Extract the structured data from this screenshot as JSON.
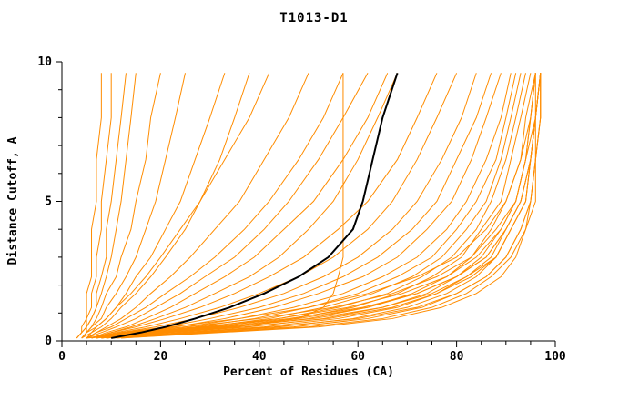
{
  "title": "T1013-D1",
  "colors": {
    "orange": "#ff8c00",
    "black": "#000000",
    "axis": "#000000",
    "background": "#ffffff"
  },
  "chart_data": {
    "type": "line",
    "title": "T1013-D1",
    "xlabel": "Percent of Residues (CA)",
    "ylabel": "Distance Cutoff, A",
    "xlim": [
      0,
      100
    ],
    "ylim": [
      0,
      10
    ],
    "x_ticks_major": [
      0,
      20,
      40,
      60,
      80,
      100
    ],
    "x_minor_step": 5,
    "y_ticks_major": [
      0,
      5,
      10
    ],
    "y_minor_step": 1,
    "grid": false,
    "legend": "none",
    "cutoffs": [
      0.1,
      0.3,
      0.5,
      0.8,
      1.2,
      1.7,
      2.3,
      3.0,
      4.0,
      5.0,
      6.5,
      8.0,
      9.6
    ],
    "highlight_series": {
      "name": "selected-model",
      "color": "#000000",
      "x": [
        10,
        16,
        21,
        27,
        34,
        41,
        48,
        54,
        59,
        61,
        63,
        65,
        68
      ]
    },
    "series": [
      {
        "x": [
          3,
          4,
          4,
          5,
          5,
          5,
          6,
          6,
          6,
          7,
          7,
          8,
          8
        ]
      },
      {
        "x": [
          3,
          4,
          5,
          5,
          6,
          6,
          7,
          7,
          8,
          8,
          9,
          10,
          10
        ]
      },
      {
        "x": [
          4,
          5,
          5,
          6,
          7,
          7,
          8,
          9,
          9,
          10,
          11,
          12,
          13
        ]
      },
      {
        "x": [
          3,
          4,
          5,
          6,
          7,
          8,
          9,
          10,
          11,
          12,
          13,
          14,
          15
        ]
      },
      {
        "x": [
          4,
          5,
          6,
          7,
          8,
          9,
          11,
          12,
          14,
          15,
          17,
          18,
          20
        ]
      },
      {
        "x": [
          4,
          5,
          6,
          8,
          9,
          11,
          13,
          15,
          17,
          19,
          21,
          23,
          25
        ]
      },
      {
        "x": [
          4,
          6,
          7,
          9,
          11,
          13,
          15,
          18,
          21,
          24,
          27,
          30,
          33
        ]
      },
      {
        "x": [
          5,
          6,
          8,
          10,
          12,
          15,
          18,
          21,
          25,
          28,
          32,
          35,
          38
        ]
      },
      {
        "x": [
          4,
          5,
          7,
          9,
          11,
          14,
          17,
          20,
          24,
          28,
          33,
          38,
          42
        ]
      },
      {
        "x": [
          5,
          7,
          9,
          12,
          15,
          18,
          22,
          26,
          31,
          36,
          41,
          46,
          50
        ]
      },
      {
        "x": [
          5,
          7,
          10,
          13,
          17,
          21,
          26,
          31,
          37,
          42,
          48,
          53,
          57
        ]
      },
      {
        "x": [
          5,
          8,
          11,
          15,
          19,
          24,
          29,
          35,
          41,
          46,
          52,
          57,
          62
        ]
      },
      {
        "x": [
          6,
          9,
          13,
          17,
          22,
          27,
          33,
          39,
          45,
          51,
          57,
          62,
          66
        ]
      },
      {
        "x": [
          5,
          18,
          35,
          48,
          53,
          55,
          56,
          57,
          57,
          57,
          57,
          57,
          57
        ]
      },
      {
        "x": [
          6,
          10,
          14,
          19,
          25,
          31,
          38,
          44,
          50,
          55,
          60,
          64,
          68
        ]
      },
      {
        "x": [
          6,
          10,
          15,
          21,
          28,
          35,
          42,
          49,
          56,
          62,
          68,
          72,
          76
        ]
      },
      {
        "x": [
          6,
          11,
          17,
          24,
          32,
          40,
          48,
          55,
          62,
          67,
          72,
          76,
          80
        ]
      },
      {
        "x": [
          7,
          12,
          19,
          27,
          36,
          45,
          53,
          60,
          67,
          72,
          77,
          81,
          84
        ]
      },
      {
        "x": [
          7,
          13,
          21,
          30,
          40,
          49,
          57,
          64,
          71,
          76,
          80,
          84,
          87
        ]
      },
      {
        "x": [
          7,
          14,
          23,
          33,
          43,
          52,
          61,
          68,
          74,
          79,
          83,
          86,
          89
        ]
      },
      {
        "x": [
          8,
          15,
          25,
          36,
          47,
          57,
          65,
          72,
          78,
          82,
          86,
          89,
          91
        ]
      },
      {
        "x": [
          8,
          16,
          27,
          39,
          50,
          60,
          68,
          75,
          80,
          84,
          88,
          90,
          92
        ]
      },
      {
        "x": [
          8,
          17,
          29,
          42,
          53,
          63,
          71,
          77,
          82,
          86,
          89,
          91,
          93
        ]
      },
      {
        "x": [
          9,
          18,
          31,
          44,
          56,
          66,
          73,
          79,
          84,
          87,
          90,
          92,
          94
        ]
      },
      {
        "x": [
          9,
          19,
          33,
          47,
          59,
          68,
          75,
          81,
          85,
          89,
          91,
          93,
          95
        ]
      },
      {
        "x": [
          9,
          20,
          35,
          50,
          62,
          71,
          78,
          83,
          87,
          90,
          93,
          94,
          96
        ]
      },
      {
        "x": [
          10,
          22,
          38,
          53,
          65,
          74,
          80,
          85,
          89,
          92,
          94,
          95,
          96
        ]
      },
      {
        "x": [
          10,
          24,
          41,
          56,
          68,
          76,
          82,
          87,
          90,
          93,
          95,
          96,
          97
        ]
      },
      {
        "x": [
          11,
          26,
          44,
          59,
          70,
          78,
          84,
          88,
          91,
          94,
          95,
          96,
          97
        ]
      },
      {
        "x": [
          11,
          28,
          47,
          62,
          73,
          80,
          86,
          90,
          93,
          95,
          96,
          97,
          97
        ]
      },
      {
        "x": [
          12,
          30,
          50,
          65,
          75,
          82,
          87,
          91,
          94,
          95,
          96,
          97,
          97
        ]
      },
      {
        "x": [
          8,
          18,
          32,
          48,
          62,
          72,
          80,
          86,
          90,
          93,
          95,
          96,
          97
        ]
      },
      {
        "x": [
          7,
          15,
          28,
          44,
          58,
          69,
          78,
          84,
          89,
          92,
          94,
          96,
          97
        ]
      },
      {
        "x": [
          6,
          13,
          25,
          40,
          55,
          67,
          76,
          83,
          88,
          92,
          94,
          95,
          96
        ]
      },
      {
        "x": [
          9,
          21,
          37,
          54,
          67,
          76,
          83,
          88,
          91,
          94,
          95,
          96,
          97
        ]
      },
      {
        "x": [
          10,
          25,
          43,
          60,
          72,
          80,
          86,
          90,
          93,
          95,
          96,
          96,
          97
        ]
      },
      {
        "x": [
          8,
          19,
          34,
          51,
          65,
          75,
          82,
          88,
          91,
          94,
          95,
          96,
          96
        ]
      },
      {
        "x": [
          7,
          16,
          30,
          46,
          61,
          72,
          80,
          86,
          90,
          93,
          95,
          96,
          97
        ]
      },
      {
        "x": [
          12,
          32,
          52,
          67,
          77,
          84,
          89,
          92,
          94,
          96,
          96,
          97,
          97
        ]
      },
      {
        "x": [
          5,
          12,
          22,
          36,
          50,
          62,
          72,
          80,
          86,
          90,
          93,
          95,
          96
        ]
      }
    ]
  }
}
